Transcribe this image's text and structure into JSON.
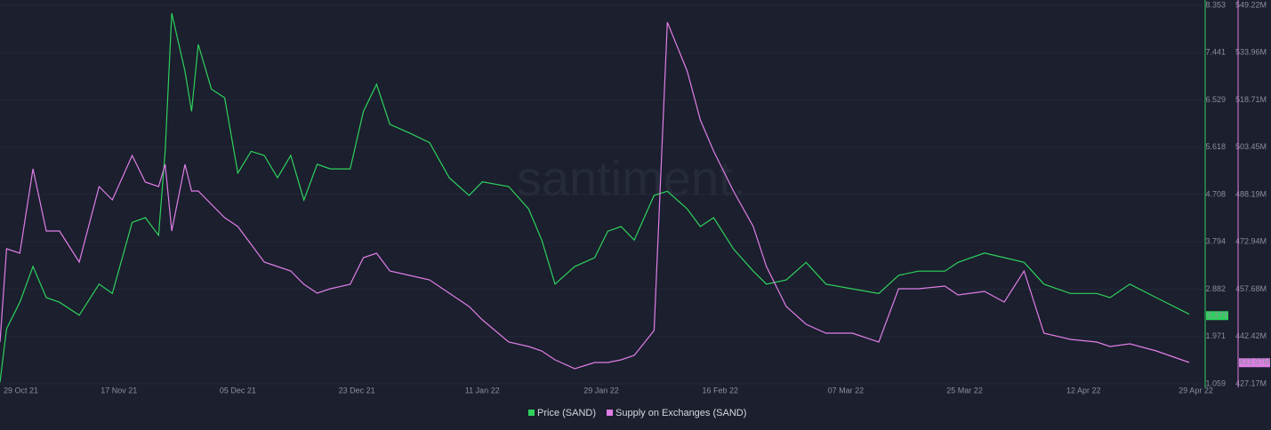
{
  "chart_data": {
    "type": "line",
    "watermark": "santiment.",
    "x": [
      "2021-10-30",
      "2021-10-31",
      "2021-11-02",
      "2021-11-04",
      "2021-11-06",
      "2021-11-08",
      "2021-11-11",
      "2021-11-14",
      "2021-11-16",
      "2021-11-19",
      "2021-11-21",
      "2021-11-23",
      "2021-11-24",
      "2021-11-25",
      "2021-11-27",
      "2021-11-28",
      "2021-11-29",
      "2021-12-01",
      "2021-12-03",
      "2021-12-05",
      "2021-12-07",
      "2021-12-09",
      "2021-12-11",
      "2021-12-13",
      "2021-12-15",
      "2021-12-17",
      "2021-12-19",
      "2021-12-22",
      "2021-12-24",
      "2021-12-26",
      "2021-12-28",
      "2021-12-31",
      "2022-01-03",
      "2022-01-06",
      "2022-01-09",
      "2022-01-11",
      "2022-01-15",
      "2022-01-18",
      "2022-01-20",
      "2022-01-22",
      "2022-01-25",
      "2022-01-28",
      "2022-01-30",
      "2022-02-01",
      "2022-02-03",
      "2022-02-06",
      "2022-02-08",
      "2022-02-11",
      "2022-02-13",
      "2022-02-15",
      "2022-02-18",
      "2022-02-21",
      "2022-02-23",
      "2022-02-26",
      "2022-03-01",
      "2022-03-04",
      "2022-03-08",
      "2022-03-12",
      "2022-03-15",
      "2022-03-18",
      "2022-03-22",
      "2022-03-24",
      "2022-03-28",
      "2022-03-31",
      "2022-04-03",
      "2022-04-06",
      "2022-04-10",
      "2022-04-14",
      "2022-04-16",
      "2022-04-19",
      "2022-04-23",
      "2022-04-28"
    ],
    "xlim": [
      "2021-10-30",
      "2022-04-30"
    ],
    "xticks": [
      {
        "value": "2021-10-29",
        "label": "29 Oct 21"
      },
      {
        "value": "2021-11-17",
        "label": "17 Nov 21"
      },
      {
        "value": "2021-12-05",
        "label": "05 Dec 21"
      },
      {
        "value": "2021-12-23",
        "label": "23 Dec 21"
      },
      {
        "value": "2022-01-11",
        "label": "11 Jan 22"
      },
      {
        "value": "2022-01-29",
        "label": "29 Jan 22"
      },
      {
        "value": "2022-02-16",
        "label": "16 Feb 22"
      },
      {
        "value": "2022-03-07",
        "label": "07 Mar 22"
      },
      {
        "value": "2022-03-25",
        "label": "25 Mar 22"
      },
      {
        "value": "2022-04-12",
        "label": "12 Apr 22"
      },
      {
        "value": "2022-04-29",
        "label": "29 Apr 22"
      }
    ],
    "ylim": [
      1.059,
      8.353
    ],
    "yticks": [
      1.059,
      1.971,
      2.882,
      3.794,
      4.708,
      5.618,
      6.529,
      7.441,
      8.353
    ],
    "y2lim": [
      427170000,
      549220000
    ],
    "y2ticks": [
      {
        "value": 427170000,
        "label": "427.17M"
      },
      {
        "value": 442420000,
        "label": "442.42M"
      },
      {
        "value": 457680000,
        "label": "457.68M"
      },
      {
        "value": 472940000,
        "label": "472.94M"
      },
      {
        "value": 488190000,
        "label": "488.19M"
      },
      {
        "value": 503450000,
        "label": "503.45M"
      },
      {
        "value": 518710000,
        "label": "518.71M"
      },
      {
        "value": 533960000,
        "label": "533.96M"
      },
      {
        "value": 549220000,
        "label": "549.22M"
      }
    ],
    "grid": true,
    "series": [
      {
        "name": "Price (SAND)",
        "color": "#2fd15c",
        "axis": "y",
        "last_value": 2.373,
        "values": [
          1.09,
          2.12,
          2.63,
          3.32,
          2.72,
          2.63,
          2.38,
          2.98,
          2.8,
          4.17,
          4.26,
          3.92,
          5.54,
          8.2,
          7.08,
          6.31,
          7.6,
          6.74,
          6.57,
          5.12,
          5.54,
          5.46,
          5.03,
          5.46,
          4.6,
          5.29,
          5.2,
          5.2,
          6.31,
          6.83,
          6.06,
          5.89,
          5.71,
          5.03,
          4.69,
          4.95,
          4.86,
          4.43,
          3.83,
          2.98,
          3.32,
          3.49,
          4.0,
          4.09,
          3.83,
          4.69,
          4.77,
          4.43,
          4.09,
          4.26,
          3.66,
          3.23,
          2.98,
          3.06,
          3.4,
          2.98,
          2.89,
          2.8,
          3.15,
          3.23,
          3.23,
          3.4,
          3.58,
          3.49,
          3.4,
          2.98,
          2.8,
          2.8,
          2.72,
          2.98,
          2.72,
          2.4
        ]
      },
      {
        "name": "Supply on Exchanges (SAND)",
        "color": "#e07ee6",
        "axis": "y2",
        "last_value": {
          "value": 433970000,
          "label": "433.97M"
        },
        "values": [
          440640000,
          470720000,
          469290000,
          496500000,
          476450000,
          476450000,
          466420000,
          490770000,
          486480000,
          500800000,
          492210000,
          490770000,
          497930000,
          476450000,
          497930000,
          489340000,
          489340000,
          485040000,
          480750000,
          477880000,
          472150000,
          466420000,
          464990000,
          463560000,
          459260000,
          456390000,
          457830000,
          459260000,
          467850000,
          469290000,
          463560000,
          462120000,
          460690000,
          456390000,
          452100000,
          447800000,
          440640000,
          439200000,
          437770000,
          434910000,
          432040000,
          434050000,
          434050000,
          434910000,
          436340000,
          444360000,
          543780000,
          528020000,
          512260000,
          502230000,
          489340000,
          477880000,
          464990000,
          452100000,
          446370000,
          443500000,
          443500000,
          440640000,
          457830000,
          457830000,
          458690000,
          455820000,
          456970000,
          453530000,
          463560000,
          443500000,
          441500000,
          440640000,
          439200000,
          440060000,
          437770000,
          434050000
        ]
      }
    ]
  }
}
